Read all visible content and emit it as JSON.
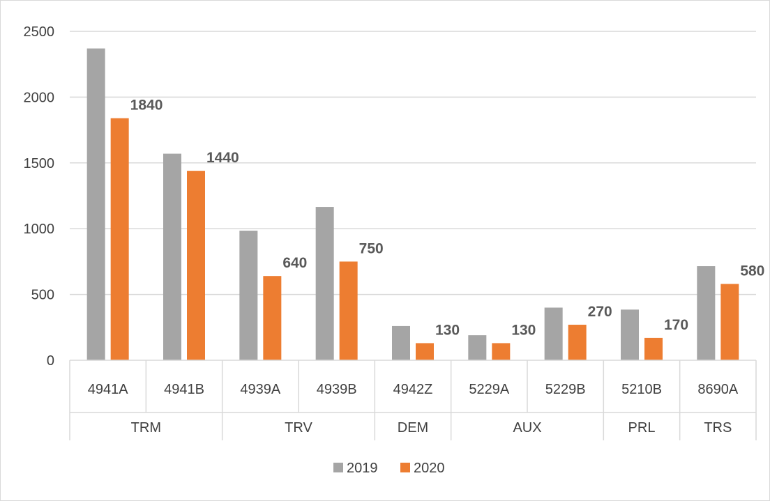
{
  "chart_data": {
    "type": "bar",
    "title": "",
    "xlabel": "",
    "ylabel": "",
    "ylim": [
      0,
      2500
    ],
    "yticks": [
      0,
      500,
      1000,
      1500,
      2000,
      2500
    ],
    "grid": true,
    "legend_position": "bottom",
    "categories": [
      "4941A",
      "4941B",
      "4939A",
      "4939B",
      "4942Z",
      "5229A",
      "5229B",
      "5210B",
      "8690A"
    ],
    "groups": [
      {
        "label": "TRM",
        "span": 2
      },
      {
        "label": "TRV",
        "span": 2
      },
      {
        "label": "DEM",
        "span": 1
      },
      {
        "label": "AUX",
        "span": 2
      },
      {
        "label": "PRL",
        "span": 1
      },
      {
        "label": "TRS",
        "span": 1
      }
    ],
    "series": [
      {
        "name": "2019",
        "color": "#a5a5a5",
        "values": [
          2370,
          1570,
          985,
          1165,
          260,
          190,
          400,
          385,
          715
        ]
      },
      {
        "name": "2020",
        "color": "#ed7d31",
        "values": [
          1840,
          1440,
          640,
          750,
          130,
          130,
          270,
          170,
          580
        ],
        "data_labels": [
          "1840",
          "1440",
          "640",
          "750",
          "130",
          "130",
          "270",
          "170",
          "580"
        ]
      }
    ]
  }
}
